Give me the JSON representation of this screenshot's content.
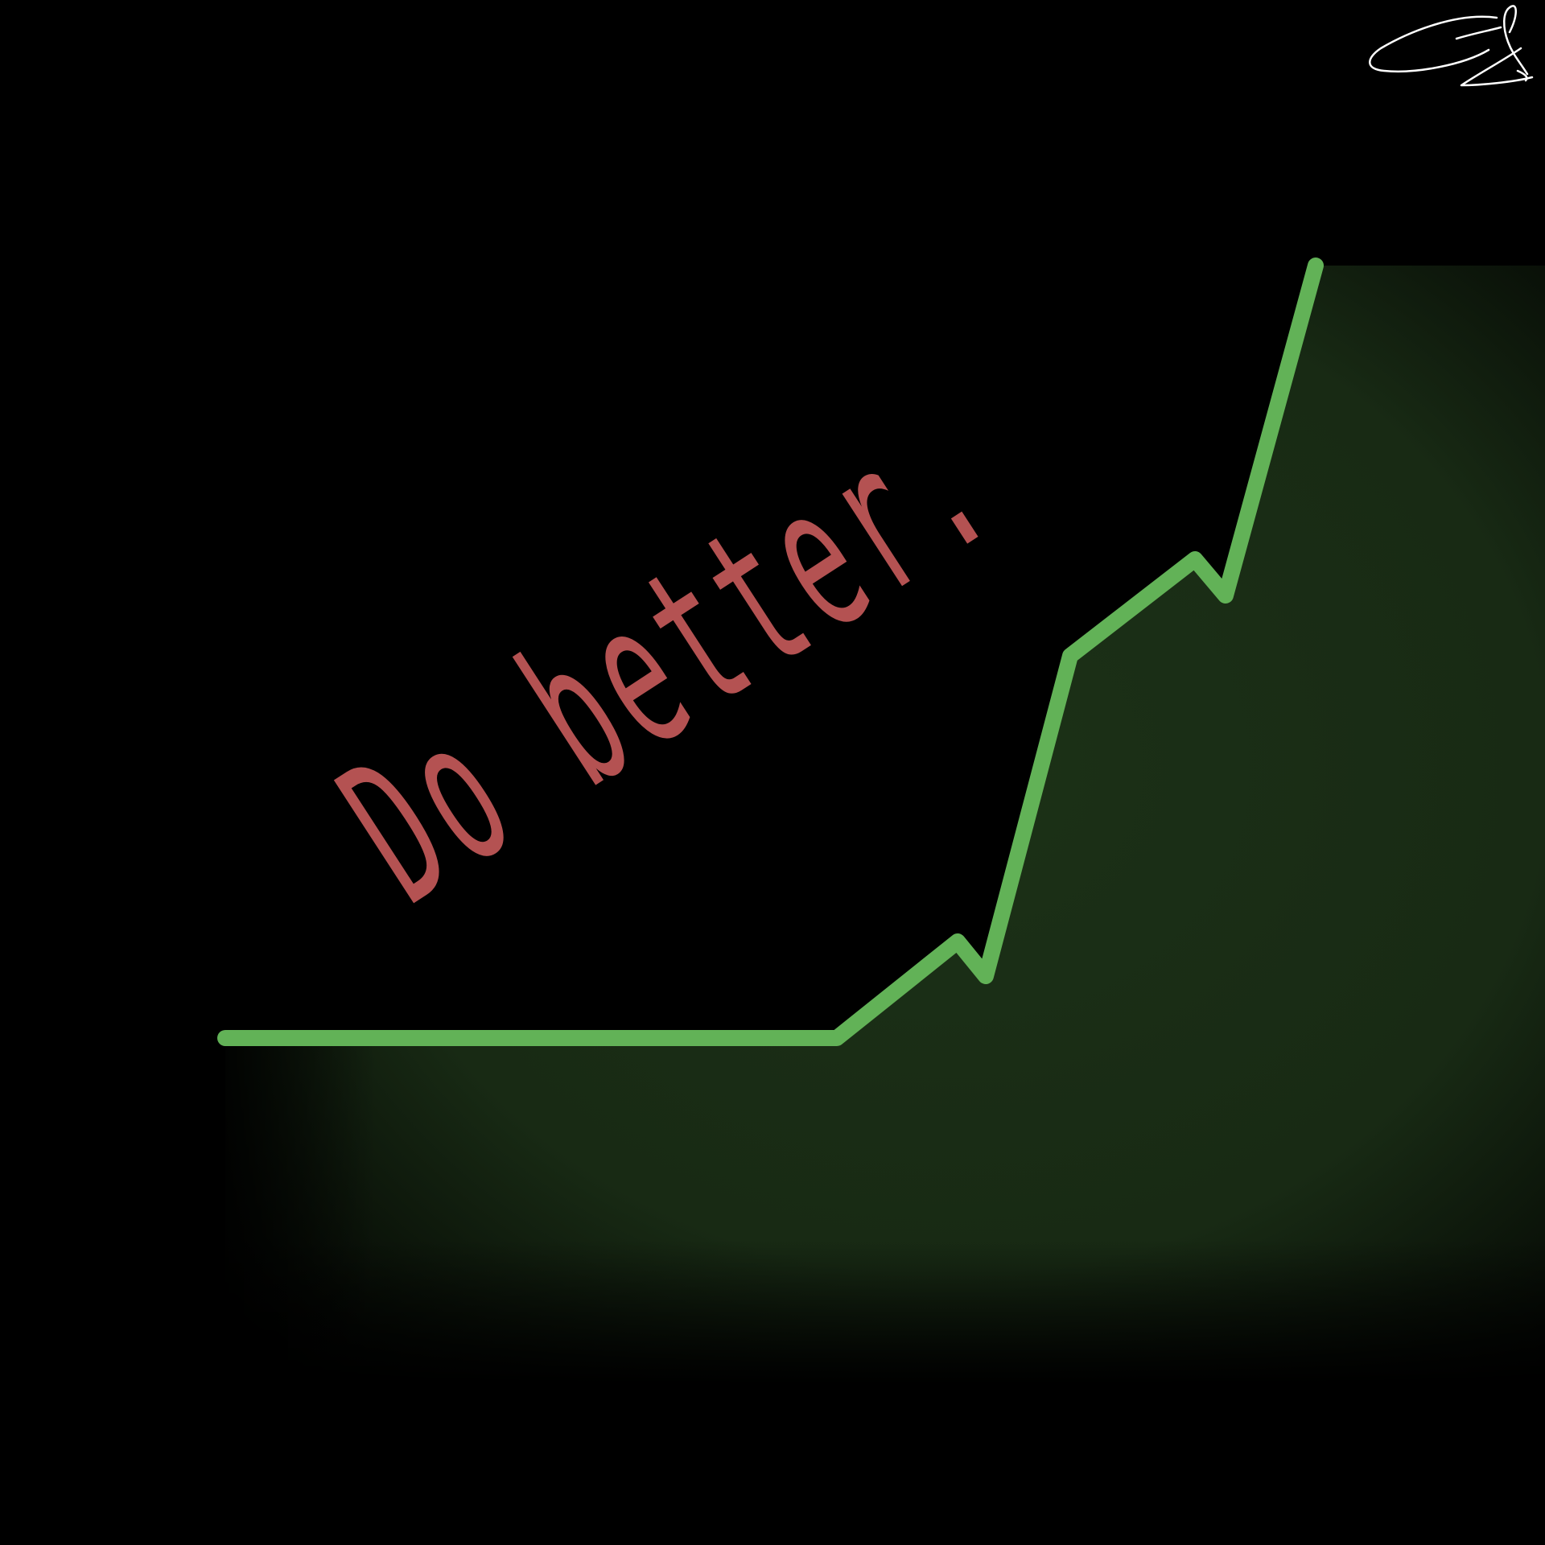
{
  "artwork": {
    "background": "#000000",
    "slogan": {
      "text": "Do better.",
      "color": "#b45252"
    },
    "trend_line": {
      "color": "#62b257",
      "fill": "#1a2e16"
    },
    "signature": {
      "color": "#ffffff",
      "description_icon": "signature-scribble"
    }
  }
}
